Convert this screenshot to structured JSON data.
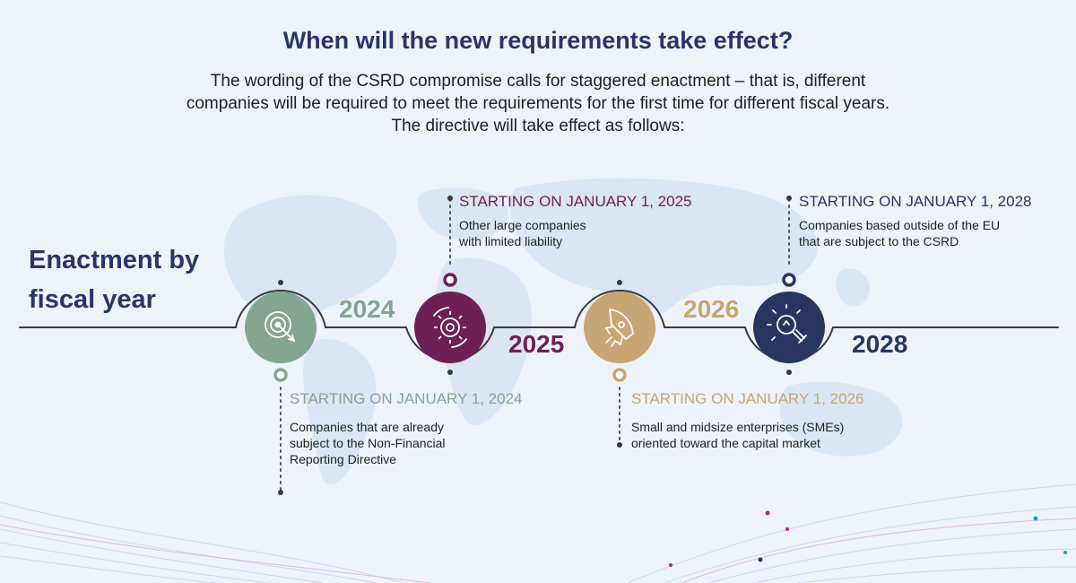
{
  "title": "When will the new requirements take effect?",
  "subtitle": "The wording of the CSRD compromise calls for staggered enactment – that is, different companies will be required to meet the requirements for the first time for different fiscal years. The directive will take effect as follows:",
  "side_heading": "Enactment by fiscal year",
  "milestones": [
    {
      "year": "2024",
      "color": "#84a592",
      "icon": "target-icon",
      "heading": "STARTING ON JANUARY 1, 2024",
      "description": "Companies that are already subject to the Non-Financial Reporting Directive"
    },
    {
      "year": "2025",
      "color": "#6e1f55",
      "icon": "gear-icon",
      "heading": "STARTING ON JANUARY 1, 2025",
      "description": "Other large companies with limited liability"
    },
    {
      "year": "2026",
      "color": "#c8a575",
      "icon": "rocket-icon",
      "heading": "STARTING ON JANUARY 1, 2026",
      "description": "Small and midsize enterprises (SMEs) oriented toward the capital market"
    },
    {
      "year": "2028",
      "color": "#27365e",
      "icon": "lightbulb-icon",
      "heading": "STARTING ON JANUARY 1, 2028",
      "description": "Companies based outside of the EU that are subject to the CSRD"
    }
  ]
}
